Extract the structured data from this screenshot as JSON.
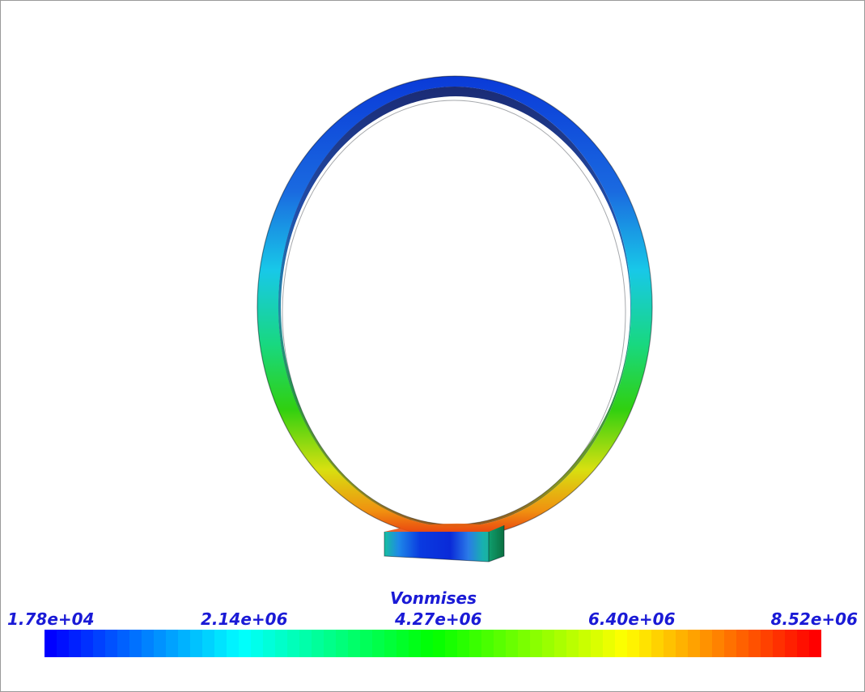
{
  "legend": {
    "title": "Vonmises",
    "ticks": [
      "1.78e+04",
      "2.14e+06",
      "4.27e+06",
      "6.40e+06",
      "8.52e+06"
    ],
    "min": 17800,
    "max": 8520000,
    "colormap": "rainbow blue-cyan-green-yellow-red",
    "swatch_count": 64
  },
  "model": {
    "description_icon": "ring-on-base-icon"
  },
  "colors": {
    "text": "#1a1ad6",
    "border": "#9a9a9a",
    "background": "#ffffff"
  }
}
